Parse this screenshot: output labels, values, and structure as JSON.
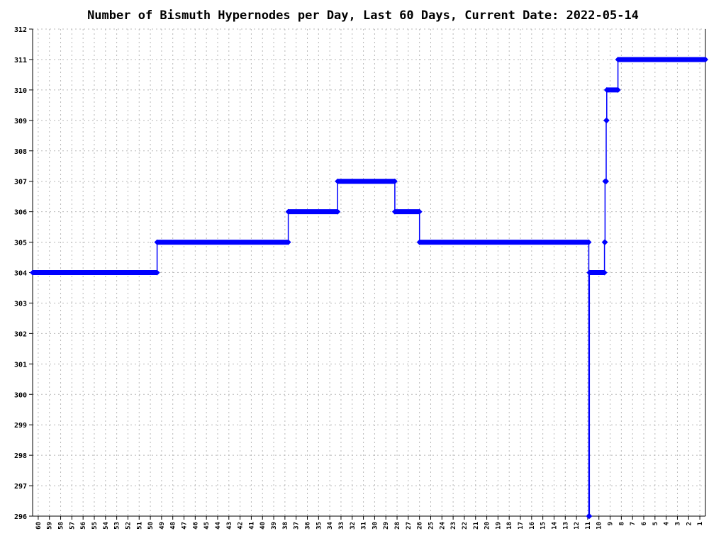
{
  "chart_data": {
    "type": "line",
    "title": "Number of Bismuth Hypernodes per Day, Last 60 Days, Current Date: 2022-05-14",
    "xlabel": "",
    "ylabel": "",
    "ylim": [
      296,
      312
    ],
    "y_ticks": [
      296,
      297,
      298,
      299,
      300,
      301,
      302,
      303,
      304,
      305,
      306,
      307,
      308,
      309,
      310,
      311,
      312
    ],
    "x_ticks": [
      60,
      59,
      58,
      57,
      56,
      55,
      54,
      53,
      52,
      51,
      50,
      49,
      48,
      47,
      46,
      45,
      44,
      43,
      42,
      41,
      40,
      39,
      38,
      37,
      36,
      35,
      34,
      33,
      32,
      31,
      30,
      29,
      28,
      27,
      26,
      25,
      24,
      23,
      22,
      21,
      20,
      19,
      18,
      17,
      16,
      15,
      14,
      13,
      12,
      11,
      10,
      9,
      8,
      7,
      6,
      5,
      4,
      3,
      2,
      1
    ],
    "xlim_days_ago": [
      60.5,
      0.5
    ],
    "grid": true,
    "legend": "none",
    "series": [
      {
        "color": "#0000ff",
        "steps": [
          {
            "from": 60.5,
            "to": 49.4,
            "value": 304
          },
          {
            "from": 49.4,
            "to": 37.7,
            "value": 305
          },
          {
            "from": 37.7,
            "to": 33.3,
            "value": 306
          },
          {
            "from": 33.3,
            "to": 28.2,
            "value": 307
          },
          {
            "from": 28.2,
            "to": 26.0,
            "value": 306
          },
          {
            "from": 26.0,
            "to": 10.9,
            "value": 305
          },
          {
            "from": 10.9,
            "to": 10.85,
            "value": 296
          },
          {
            "from": 10.85,
            "to": 9.5,
            "value": 304
          },
          {
            "from": 9.5,
            "to": 9.45,
            "value": 305
          },
          {
            "from": 9.45,
            "to": 9.35,
            "value": 307
          },
          {
            "from": 9.35,
            "to": 9.3,
            "value": 309
          },
          {
            "from": 9.3,
            "to": 8.3,
            "value": 310
          },
          {
            "from": 8.3,
            "to": 0.5,
            "value": 311
          }
        ]
      }
    ]
  }
}
